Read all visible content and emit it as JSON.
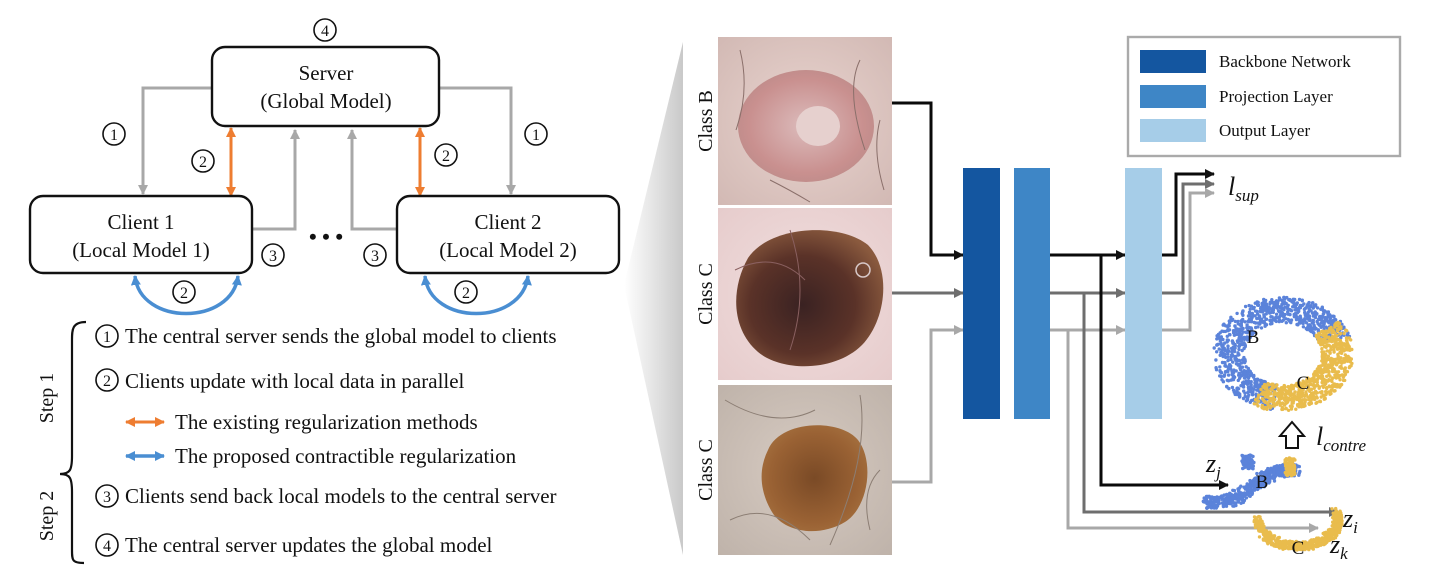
{
  "diagram": {
    "server_line1": "Server",
    "server_line2": "(Global Model)",
    "client1_line1": "Client 1",
    "client1_line2": "(Local Model 1)",
    "client2_line1": "Client 2",
    "client2_line2": "(Local Model 2)",
    "ellipsis": "• • •",
    "num1": "1",
    "num2": "2",
    "num3": "3",
    "num4": "4"
  },
  "steps": {
    "step1_label": "Step 1",
    "step2_label": "Step 2",
    "item1": "The central server sends the global model to clients",
    "item2": "Clients update with local data in parallel",
    "item2a": "The existing regularization methods",
    "item2b": "The proposed contractible regularization",
    "item3": "Clients send back local models to the central server",
    "item4": "The central server updates the global model"
  },
  "images": {
    "class_b": "Class B",
    "class_c1": "Class C",
    "class_c2": "Class C"
  },
  "legend": {
    "backbone": "Backbone Network",
    "projection": "Projection Layer",
    "output": "Output Layer"
  },
  "math": {
    "l": "l",
    "sup": "sup",
    "contre": "contre",
    "z": "z",
    "i": "i",
    "j": "j",
    "k": "k"
  },
  "cluster_labels": {
    "upper_b": "B",
    "upper_c": "C",
    "lower_b": "B",
    "lower_c": "C"
  },
  "colors": {
    "backbone": "#1456a0",
    "projection": "#3e86c6",
    "output": "#a6cde8",
    "orange_arrow": "#ee7d31",
    "blue_arrow": "#4a8ed2",
    "cluster_blue": "#5b83da",
    "cluster_yellow": "#e9bc4d"
  }
}
